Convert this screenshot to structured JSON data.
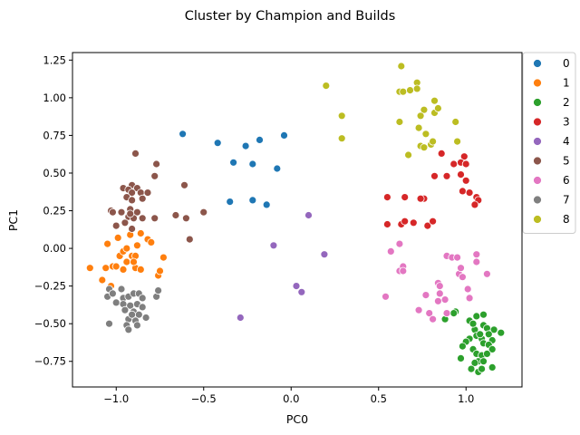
{
  "chart_data": {
    "type": "scatter",
    "title": "Cluster by Champion and Builds",
    "xlabel": "PC0",
    "ylabel": "PC1",
    "xlim": [
      -1.25,
      1.32
    ],
    "ylim": [
      -0.92,
      1.3
    ],
    "xticks": [
      -1.0,
      -0.5,
      0.0,
      0.5,
      1.0
    ],
    "xtick_labels": [
      "−1.0",
      "−0.5",
      "0.0",
      "0.5",
      "1.0"
    ],
    "yticks": [
      -0.75,
      -0.5,
      -0.25,
      0.0,
      0.25,
      0.5,
      0.75,
      1.0,
      1.25
    ],
    "ytick_labels": [
      "−0.75",
      "−0.50",
      "−0.25",
      "0.00",
      "0.25",
      "0.50",
      "0.75",
      "1.00",
      "1.25"
    ],
    "grid": false,
    "legend": "outside-top-right",
    "series": [
      {
        "name": "0",
        "color": "#1f77b4",
        "points": [
          [
            -0.62,
            0.76
          ],
          [
            -0.42,
            0.7
          ],
          [
            -0.33,
            0.57
          ],
          [
            -0.26,
            0.68
          ],
          [
            -0.18,
            0.72
          ],
          [
            -0.04,
            0.75
          ],
          [
            -0.22,
            0.56
          ],
          [
            -0.08,
            0.53
          ],
          [
            -0.35,
            0.31
          ],
          [
            -0.22,
            0.32
          ],
          [
            -0.14,
            0.29
          ]
        ]
      },
      {
        "name": "1",
        "color": "#ff7f0e",
        "points": [
          [
            -1.15,
            -0.13
          ],
          [
            -1.08,
            -0.21
          ],
          [
            -1.06,
            -0.13
          ],
          [
            -1.03,
            -0.25
          ],
          [
            -1.05,
            0.03
          ],
          [
            -1.02,
            -0.12
          ],
          [
            -0.99,
            0.07
          ],
          [
            -0.98,
            -0.05
          ],
          [
            -0.96,
            -0.02
          ],
          [
            -0.94,
            0.0
          ],
          [
            -0.92,
            0.09
          ],
          [
            -0.94,
            -0.09
          ],
          [
            -0.91,
            -0.05
          ],
          [
            -0.89,
            -0.05
          ],
          [
            -0.89,
            -0.13
          ],
          [
            -0.86,
            -0.14
          ],
          [
            -0.88,
            0.02
          ],
          [
            -0.86,
            0.1
          ],
          [
            -0.82,
            0.06
          ],
          [
            -0.8,
            0.04
          ],
          [
            -0.76,
            -0.18
          ],
          [
            -0.75,
            -0.15
          ],
          [
            -0.73,
            -0.06
          ],
          [
            -0.96,
            -0.14
          ],
          [
            -1.0,
            -0.12
          ],
          [
            -0.9,
            -0.09
          ]
        ]
      },
      {
        "name": "2",
        "color": "#2ca02c",
        "points": [
          [
            0.94,
            -0.42
          ],
          [
            0.93,
            -0.43
          ],
          [
            0.88,
            -0.47
          ],
          [
            1.02,
            -0.48
          ],
          [
            1.06,
            -0.45
          ],
          [
            1.1,
            -0.44
          ],
          [
            1.1,
            -0.51
          ],
          [
            1.12,
            -0.53
          ],
          [
            1.16,
            -0.54
          ],
          [
            1.05,
            -0.54
          ],
          [
            1.06,
            -0.58
          ],
          [
            1.09,
            -0.6
          ],
          [
            1.13,
            -0.57
          ],
          [
            1.15,
            -0.61
          ],
          [
            1.2,
            -0.56
          ],
          [
            1.02,
            -0.6
          ],
          [
            1.0,
            -0.62
          ],
          [
            0.98,
            -0.65
          ],
          [
            1.04,
            -0.67
          ],
          [
            1.1,
            -0.63
          ],
          [
            1.13,
            -0.64
          ],
          [
            1.06,
            -0.7
          ],
          [
            1.09,
            -0.71
          ],
          [
            1.15,
            -0.67
          ],
          [
            1.12,
            -0.7
          ],
          [
            1.07,
            -0.75
          ],
          [
            1.05,
            -0.76
          ],
          [
            1.1,
            -0.75
          ],
          [
            0.97,
            -0.73
          ],
          [
            1.03,
            -0.8
          ],
          [
            1.07,
            -0.82
          ],
          [
            1.09,
            -0.8
          ],
          [
            1.15,
            -0.79
          ],
          [
            1.08,
            -0.57
          ],
          [
            1.04,
            -0.5
          ]
        ]
      },
      {
        "name": "3",
        "color": "#d62728",
        "points": [
          [
            0.99,
            0.61
          ],
          [
            0.97,
            0.57
          ],
          [
            1.0,
            0.56
          ],
          [
            0.86,
            0.63
          ],
          [
            0.93,
            0.56
          ],
          [
            0.82,
            0.48
          ],
          [
            0.89,
            0.48
          ],
          [
            0.97,
            0.49
          ],
          [
            1.0,
            0.45
          ],
          [
            0.98,
            0.38
          ],
          [
            1.02,
            0.37
          ],
          [
            1.06,
            0.34
          ],
          [
            1.07,
            0.32
          ],
          [
            1.05,
            0.29
          ],
          [
            0.55,
            0.34
          ],
          [
            0.65,
            0.34
          ],
          [
            0.76,
            0.33
          ],
          [
            0.55,
            0.16
          ],
          [
            0.63,
            0.16
          ],
          [
            0.65,
            0.18
          ],
          [
            0.7,
            0.17
          ],
          [
            0.78,
            0.15
          ],
          [
            0.81,
            0.18
          ],
          [
            0.74,
            0.33
          ]
        ]
      },
      {
        "name": "4",
        "color": "#9467bd",
        "points": [
          [
            -0.29,
            -0.46
          ],
          [
            -0.1,
            0.02
          ],
          [
            0.03,
            -0.25
          ],
          [
            0.06,
            -0.29
          ],
          [
            0.1,
            0.22
          ],
          [
            0.19,
            -0.04
          ]
        ]
      },
      {
        "name": "5",
        "color": "#8c564b",
        "points": [
          [
            -0.89,
            0.63
          ],
          [
            -0.91,
            0.42
          ],
          [
            -0.96,
            0.4
          ],
          [
            -0.93,
            0.39
          ],
          [
            -0.88,
            0.4
          ],
          [
            -0.91,
            0.37
          ],
          [
            -0.86,
            0.37
          ],
          [
            -0.82,
            0.37
          ],
          [
            -0.85,
            0.33
          ],
          [
            -0.94,
            0.34
          ],
          [
            -0.91,
            0.32
          ],
          [
            -0.92,
            0.26
          ],
          [
            -0.88,
            0.24
          ],
          [
            -1.03,
            0.25
          ],
          [
            -1.02,
            0.24
          ],
          [
            -0.97,
            0.24
          ],
          [
            -0.93,
            0.21
          ],
          [
            -0.9,
            0.2
          ],
          [
            -0.85,
            0.2
          ],
          [
            -0.78,
            0.2
          ],
          [
            -0.95,
            0.17
          ],
          [
            -1.0,
            0.15
          ],
          [
            -0.91,
            0.13
          ],
          [
            -0.77,
            0.56
          ],
          [
            -0.78,
            0.48
          ],
          [
            -0.61,
            0.42
          ],
          [
            -0.6,
            0.2
          ],
          [
            -0.66,
            0.22
          ],
          [
            -0.5,
            0.24
          ],
          [
            -0.58,
            0.06
          ],
          [
            -0.92,
            0.23
          ]
        ]
      },
      {
        "name": "6",
        "color": "#e377c2",
        "points": [
          [
            0.54,
            -0.32
          ],
          [
            0.57,
            -0.02
          ],
          [
            0.62,
            0.03
          ],
          [
            0.62,
            -0.15
          ],
          [
            0.64,
            -0.12
          ],
          [
            0.64,
            -0.15
          ],
          [
            0.73,
            -0.41
          ],
          [
            0.77,
            -0.31
          ],
          [
            0.79,
            -0.43
          ],
          [
            0.81,
            -0.47
          ],
          [
            0.84,
            -0.23
          ],
          [
            0.85,
            -0.25
          ],
          [
            0.85,
            -0.3
          ],
          [
            0.89,
            -0.05
          ],
          [
            0.88,
            -0.34
          ],
          [
            0.92,
            -0.06
          ],
          [
            0.95,
            -0.06
          ],
          [
            0.96,
            -0.17
          ],
          [
            0.97,
            -0.13
          ],
          [
            0.98,
            -0.19
          ],
          [
            1.01,
            -0.27
          ],
          [
            1.02,
            -0.33
          ],
          [
            1.06,
            -0.04
          ],
          [
            1.06,
            -0.09
          ],
          [
            1.12,
            -0.17
          ],
          [
            0.89,
            -0.43
          ],
          [
            0.84,
            -0.35
          ]
        ]
      },
      {
        "name": "7",
        "color": "#7f7f7f",
        "points": [
          [
            -1.05,
            -0.32
          ],
          [
            -1.04,
            -0.27
          ],
          [
            -1.02,
            -0.3
          ],
          [
            -0.97,
            -0.27
          ],
          [
            -0.96,
            -0.33
          ],
          [
            -0.93,
            -0.32
          ],
          [
            -0.9,
            -0.3
          ],
          [
            -0.87,
            -0.3
          ],
          [
            -0.85,
            -0.33
          ],
          [
            -1.0,
            -0.36
          ],
          [
            -0.96,
            -0.37
          ],
          [
            -0.92,
            -0.38
          ],
          [
            -0.88,
            -0.37
          ],
          [
            -0.85,
            -0.39
          ],
          [
            -0.95,
            -0.41
          ],
          [
            -0.9,
            -0.42
          ],
          [
            -0.87,
            -0.44
          ],
          [
            -0.93,
            -0.47
          ],
          [
            -0.89,
            -0.48
          ],
          [
            -0.83,
            -0.46
          ],
          [
            -0.94,
            -0.51
          ],
          [
            -0.88,
            -0.51
          ],
          [
            -1.04,
            -0.5
          ],
          [
            -0.77,
            -0.32
          ],
          [
            -0.76,
            -0.28
          ],
          [
            -0.93,
            -0.54
          ],
          [
            -0.91,
            -0.44
          ]
        ]
      },
      {
        "name": "8",
        "color": "#bcbd22",
        "points": [
          [
            0.2,
            1.08
          ],
          [
            0.29,
            0.88
          ],
          [
            0.29,
            0.73
          ],
          [
            0.63,
            1.21
          ],
          [
            0.62,
            1.04
          ],
          [
            0.64,
            1.04
          ],
          [
            0.62,
            0.84
          ],
          [
            0.68,
            1.05
          ],
          [
            0.72,
            1.1
          ],
          [
            0.72,
            1.06
          ],
          [
            0.76,
            0.92
          ],
          [
            0.74,
            0.88
          ],
          [
            0.73,
            0.8
          ],
          [
            0.77,
            0.76
          ],
          [
            0.74,
            0.68
          ],
          [
            0.76,
            0.67
          ],
          [
            0.8,
            0.69
          ],
          [
            0.82,
            0.98
          ],
          [
            0.82,
            0.9
          ],
          [
            0.84,
            0.93
          ],
          [
            0.67,
            0.62
          ],
          [
            0.94,
            0.84
          ],
          [
            0.95,
            0.71
          ],
          [
            0.81,
            0.71
          ]
        ]
      }
    ]
  }
}
